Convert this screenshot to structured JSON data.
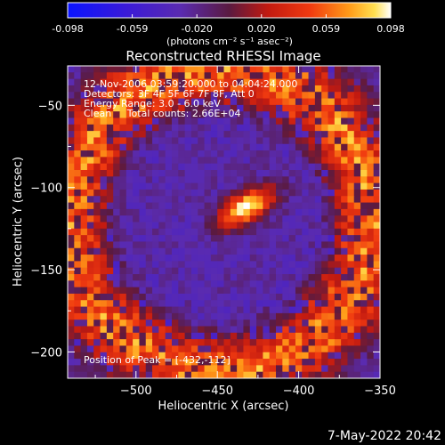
{
  "colorbar": {
    "ticks": [
      "-0.098",
      "-0.059",
      "-0.020",
      "0.020",
      "0.059",
      "0.098"
    ],
    "units_label": "(photons cm⁻² s⁻¹ asec⁻²)"
  },
  "chart_data": {
    "type": "heatmap",
    "title": "Reconstructed RHESSI Image",
    "xlabel": "Heliocentric X (arcsec)",
    "ylabel": "Heliocentric Y (arcsec)",
    "xlim": [
      -542,
      -350
    ],
    "ylim": [
      -216,
      -26
    ],
    "xticks": [
      -500,
      -450,
      -400,
      -350
    ],
    "yticks": [
      -50,
      -100,
      -150,
      -200
    ],
    "color_range": [
      -0.098,
      0.098
    ],
    "colormap": "blue-purple-red-yellow-white",
    "source_peak": {
      "x": -432,
      "y": -112
    },
    "annotations": [
      "12-Nov-2006 03:59:20.000 to 04:04:24.000",
      "Detectors: 3F 4F 5F 6F 7F 8F, Att 0",
      "Energy Range: 3.0 - 6.0 keV",
      "Clean     Total counts: 2.66E+04"
    ],
    "peak_label": "Position of Peak = [-432,-112]"
  },
  "footer": {
    "timestamp": "7-May-2022 20:42"
  }
}
